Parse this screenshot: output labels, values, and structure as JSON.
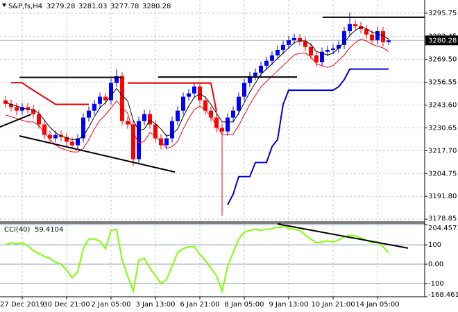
{
  "chart_data": [
    {
      "type": "candlestick",
      "title": "S&P,fs,H4",
      "categories": [
        null,
        null,
        null,
        "27 Dec 2019",
        null,
        null,
        null,
        null,
        null,
        null,
        null,
        "30 Dec 21:00",
        null,
        null,
        null,
        null,
        null,
        null,
        null,
        "2 Jan 05:00",
        null,
        null,
        null,
        null,
        null,
        null,
        null,
        "3 Jan 13:00",
        null,
        null,
        null,
        null,
        null,
        null,
        null,
        "6 Jan 21:00",
        null,
        null,
        null,
        null,
        null,
        null,
        null,
        "8 Jan 05:00",
        null,
        null,
        null,
        null,
        null,
        null,
        null,
        "9 Jan 13:00",
        null,
        null,
        null,
        null,
        null,
        null,
        null,
        "10 Jan 21:00",
        null,
        null,
        null,
        null,
        null,
        null,
        null,
        "14 Jan 05:00",
        null,
        null
      ],
      "open": [
        3246.3,
        3244.3,
        3242.4,
        3240.4,
        3242.4,
        3241.2,
        3238.5,
        3232.6,
        3226.7,
        3224.7,
        3226.7,
        3225.5,
        3222.8,
        3220.8,
        3224.7,
        3236.5,
        3240.4,
        3244.3,
        3248.3,
        3246.3,
        3256.1,
        3260.0,
        3234.5,
        3232.6,
        3212.9,
        3234.5,
        3238.5,
        3232.6,
        3224.7,
        3220.8,
        3224.7,
        3234.5,
        3240.4,
        3248.3,
        3250.2,
        3254.1,
        3246.3,
        3240.4,
        3236.5,
        3230.6,
        3228.6,
        3236.5,
        3240.4,
        3248.3,
        3256.1,
        3260.0,
        3262.0,
        3265.9,
        3268.7,
        3271.8,
        3274.9,
        3277.7,
        3280.4,
        3281.6,
        3279.7,
        3276.5,
        3271.8,
        3267.9,
        3273.8,
        3274.9,
        3275.7,
        3277.7,
        3285.5,
        3289.5,
        3288.3,
        3286.7,
        3283.6,
        3280.4,
        3285.5,
        3279.28
      ],
      "high": [
        3248.7,
        3246.7,
        3244.8,
        3244.8,
        3244.8,
        3243.6,
        3240.9,
        3235.0,
        3229.1,
        3229.1,
        3229.1,
        3227.9,
        3225.2,
        3227.1,
        3238.9,
        3242.8,
        3246.7,
        3250.7,
        3250.7,
        3258.5,
        3264.0,
        3262.4,
        3236.9,
        3235.0,
        3236.9,
        3240.9,
        3240.9,
        3235.0,
        3227.1,
        3227.1,
        3236.9,
        3242.8,
        3250.7,
        3252.6,
        3256.5,
        3256.5,
        3248.7,
        3242.8,
        3238.9,
        3233.0,
        3238.9,
        3242.8,
        3250.7,
        3258.5,
        3262.4,
        3264.4,
        3268.3,
        3271.1,
        3274.2,
        3277.3,
        3280.1,
        3282.8,
        3284.0,
        3284.0,
        3282.1,
        3278.9,
        3274.2,
        3276.2,
        3277.3,
        3278.1,
        3280.1,
        3287.9,
        3296.1,
        3291.9,
        3290.7,
        3289.1,
        3286.0,
        3287.9,
        3287.9,
        3281.03
      ],
      "low": [
        3241.9,
        3240.0,
        3238.0,
        3238.0,
        3238.8,
        3236.1,
        3230.2,
        3224.3,
        3222.3,
        3222.3,
        3223.1,
        3220.4,
        3218.4,
        3218.4,
        3222.3,
        3234.1,
        3238.0,
        3241.9,
        3243.9,
        3243.9,
        3253.7,
        3232.1,
        3230.2,
        3209.0,
        3210.5,
        3232.1,
        3230.2,
        3222.3,
        3218.4,
        3218.4,
        3222.3,
        3232.1,
        3238.0,
        3245.9,
        3247.8,
        3243.9,
        3238.0,
        3234.1,
        3228.2,
        3180.8,
        3226.2,
        3234.1,
        3238.0,
        3245.9,
        3253.7,
        3257.6,
        3259.6,
        3263.5,
        3266.3,
        3269.4,
        3272.5,
        3275.3,
        3278.0,
        3277.3,
        3274.1,
        3269.4,
        3265.5,
        3265.5,
        3271.4,
        3272.5,
        3273.3,
        3275.3,
        3283.1,
        3285.9,
        3284.3,
        3281.2,
        3278.0,
        3278.0,
        3276.9,
        3277.78
      ],
      "close": [
        3244.3,
        3242.4,
        3240.4,
        3242.4,
        3241.2,
        3238.5,
        3232.6,
        3226.7,
        3224.7,
        3226.7,
        3225.5,
        3222.8,
        3220.8,
        3224.7,
        3236.5,
        3240.4,
        3244.3,
        3248.3,
        3246.3,
        3256.1,
        3260.0,
        3234.5,
        3232.6,
        3212.9,
        3234.5,
        3238.5,
        3232.6,
        3224.7,
        3220.8,
        3224.7,
        3234.5,
        3240.4,
        3248.3,
        3250.2,
        3254.1,
        3246.3,
        3240.4,
        3236.5,
        3230.6,
        3228.6,
        3236.5,
        3240.4,
        3248.3,
        3256.1,
        3260.0,
        3262.0,
        3265.9,
        3268.7,
        3271.8,
        3274.9,
        3277.7,
        3280.4,
        3281.6,
        3279.7,
        3276.5,
        3271.8,
        3267.9,
        3273.8,
        3274.9,
        3275.7,
        3277.7,
        3285.5,
        3289.5,
        3288.3,
        3286.7,
        3283.6,
        3280.4,
        3285.5,
        3279.28,
        3280.28
      ],
      "up_color": "#0000ff",
      "down_color": "#ff0000",
      "series": [
        {
          "color": "#000000",
          "width": 1,
          "values": [
            3245,
            3244,
            3243,
            3242,
            3241,
            3241,
            3239,
            3235,
            3231,
            3228,
            3226,
            3225,
            3224,
            3224,
            3226,
            3231,
            3237,
            3242,
            3245,
            3249,
            3253,
            3249,
            3246,
            3235,
            3229,
            3230,
            3235,
            3233,
            3230,
            3226,
            3227,
            3230,
            3237,
            3243,
            3248,
            3250,
            3248,
            3244,
            3239,
            3234,
            3234,
            3234,
            3239,
            3245,
            3251,
            3256,
            3261,
            3264,
            3267,
            3270,
            3273,
            3276,
            3279,
            3280,
            3280,
            3278,
            3274,
            3273,
            3272,
            3273,
            3276,
            3279,
            3283,
            3286,
            3288,
            3287,
            3285,
            3284,
            3283,
            3281
          ]
        },
        {
          "color": "#ff0000",
          "width": 1,
          "values": [
            3238,
            3237,
            3236,
            3235,
            3234,
            3234,
            3232,
            3228,
            3224,
            3221,
            3219,
            3218,
            3217,
            3217,
            3219,
            3224,
            3230,
            3235,
            3238,
            3242,
            3246,
            3242,
            3239,
            3228,
            3222,
            3223,
            3228,
            3226,
            3223,
            3219,
            3220,
            3223,
            3230,
            3236,
            3241,
            3243,
            3241,
            3237,
            3232,
            3227,
            3227,
            3227,
            3232,
            3238,
            3244,
            3249,
            3254,
            3257,
            3260,
            3263,
            3266,
            3269,
            3272,
            3273,
            3273,
            3271,
            3267,
            3266,
            3265,
            3266,
            3269,
            3272,
            3276,
            3279,
            3281,
            3280,
            3278,
            3277,
            3276,
            3274
          ]
        },
        {
          "color": "#0000cc",
          "width": 2,
          "values": [
            null,
            null,
            null,
            null,
            null,
            null,
            null,
            null,
            null,
            null,
            null,
            null,
            null,
            null,
            null,
            null,
            null,
            null,
            null,
            null,
            null,
            null,
            null,
            null,
            null,
            null,
            null,
            null,
            null,
            null,
            null,
            null,
            null,
            null,
            null,
            null,
            null,
            null,
            null,
            null,
            3187,
            3193,
            3203,
            3203,
            3203,
            3211,
            3211,
            3211,
            3220,
            3224,
            3244,
            3252,
            3252,
            3252,
            3252,
            3252,
            3252,
            3252,
            3252,
            3252,
            3254,
            3258,
            3264,
            3264,
            3264,
            3264,
            3264,
            3264,
            3264,
            3264
          ]
        },
        {
          "color": "#ee0000",
          "width": 2,
          "values": [
            null,
            3256.3,
            3256.3,
            3256.3,
            3254,
            3252,
            3250,
            3248,
            3246,
            3244,
            3244,
            3244,
            3244,
            3244,
            3244,
            3244,
            null,
            null,
            null,
            null,
            null,
            null,
            3256.1,
            3256.1,
            3256.1,
            3256.1,
            3256.1,
            3256.1,
            3256.1,
            3256.1,
            3256.1,
            3256.1,
            3256.1,
            3256.1,
            3256.1,
            3256.1,
            3256.1,
            3256.1,
            3240,
            null,
            null,
            null,
            null,
            null,
            null,
            null,
            null,
            null,
            null,
            null,
            null,
            null,
            null,
            null,
            null,
            null,
            null,
            null,
            null,
            null,
            null,
            null,
            null,
            null,
            null,
            null,
            null,
            null,
            null,
            null
          ]
        }
      ],
      "lines": [
        {
          "x": [
            2.5,
            30.5
          ],
          "y": [
            3226.1,
            3205.6
          ]
        },
        {
          "x": [
            -1,
            4.6
          ],
          "y": [
            3231.2,
            3238.3
          ]
        },
        {
          "x": [
            2.5,
            20.9
          ],
          "y": [
            3259.3,
            3259.3
          ]
        },
        {
          "x": [
            27.5,
            52.5
          ],
          "y": [
            3259.5,
            3259.5
          ]
        },
        {
          "x": [
            57.1,
            75.5
          ],
          "y": [
            3293.4,
            3293.4
          ]
        }
      ],
      "ylim": [
        3178.1,
        3303.2
      ],
      "yticks": [
        3295.75,
        {
          "value": 3282.45,
          "label": "3282.45"
        },
        {
          "value": 3269.5,
          "label": "3269.50"
        },
        3256.55,
        {
          "value": 3243.6,
          "label": "3243.60"
        },
        3230.65,
        {
          "value": 3217.7,
          "label": "3217.70"
        },
        3204.75,
        {
          "value": 3191.8,
          "label": "3191.80"
        },
        3178.85
      ],
      "grid": true
    },
    {
      "type": "line",
      "series": [
        {
          "name": "CCI(40)",
          "color": "#7fff00",
          "values": [
            100,
            110,
            105,
            110,
            95,
            70,
            55,
            40,
            30,
            10,
            0,
            -30,
            -70,
            -40,
            80,
            130,
            130,
            120,
            80,
            175,
            180,
            20,
            -60,
            -140,
            20,
            30,
            -20,
            -60,
            -100,
            -80,
            -10,
            60,
            80,
            90,
            90,
            50,
            20,
            -20,
            -60,
            -140,
            -10,
            60,
            130,
            165,
            175,
            180,
            175,
            180,
            185,
            190,
            195,
            185,
            180,
            175,
            150,
            130,
            110,
            115,
            120,
            115,
            125,
            140,
            150,
            145,
            135,
            125,
            110,
            115,
            90,
            59.4104
          ]
        }
      ],
      "lines": [
        {
          "x": [
            49,
            72.5
          ],
          "y": [
            208,
            83
          ]
        }
      ],
      "ylim": [
        -168.4612,
        204.4571
      ],
      "yticks": [
        204.4571,
        100,
        {
          "value": 0,
          "label": "0.00"
        },
        -100,
        -168.4612
      ],
      "level_color": "#8ca0c0"
    }
  ]
}
